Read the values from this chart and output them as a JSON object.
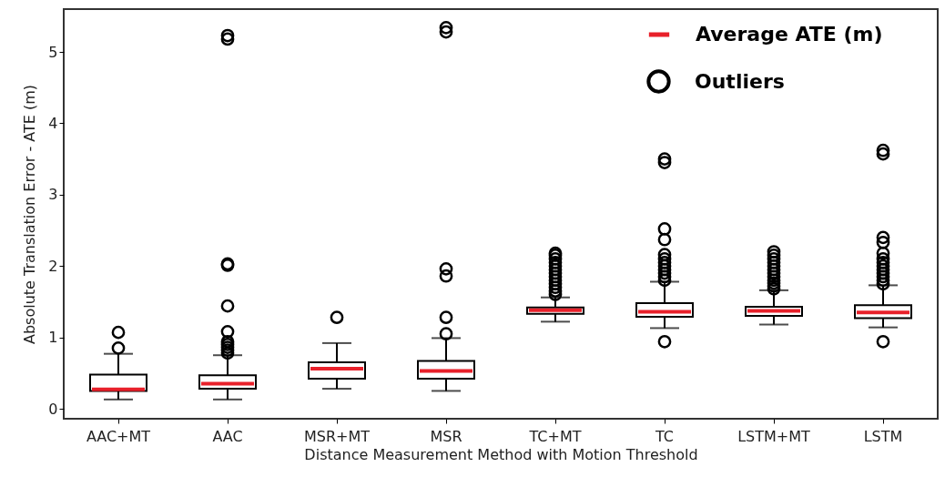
{
  "chart_data": {
    "type": "box",
    "xlabel": "Distance Measurement Method with Motion Threshold",
    "ylabel": "Absolute Translation Error - ATE (m)",
    "categories": [
      "AAC+MT",
      "AAC",
      "MSR+MT",
      "MSR",
      "TC+MT",
      "TC",
      "LSTM+MT",
      "LSTM"
    ],
    "ylim": [
      -0.14,
      5.6
    ],
    "yticks": [
      0,
      1,
      2,
      3,
      4,
      5
    ],
    "grid": false,
    "legend": "top right",
    "marker": "circle",
    "series": [
      {
        "name": "Average ATE (m)",
        "color": "#e8202a",
        "boxes": [
          {
            "low": 0.13,
            "q1": 0.25,
            "median": 0.27,
            "q3": 0.48,
            "high": 0.77
          },
          {
            "low": 0.13,
            "q1": 0.28,
            "median": 0.35,
            "q3": 0.47,
            "high": 0.75
          },
          {
            "low": 0.28,
            "q1": 0.42,
            "median": 0.56,
            "q3": 0.65,
            "high": 0.92
          },
          {
            "low": 0.25,
            "q1": 0.42,
            "median": 0.53,
            "q3": 0.67,
            "high": 0.99
          },
          {
            "low": 1.22,
            "q1": 1.33,
            "median": 1.38,
            "q3": 1.42,
            "high": 1.56
          },
          {
            "low": 1.13,
            "q1": 1.29,
            "median": 1.36,
            "q3": 1.48,
            "high": 1.78
          },
          {
            "low": 1.18,
            "q1": 1.3,
            "median": 1.37,
            "q3": 1.43,
            "high": 1.66
          },
          {
            "low": 1.14,
            "q1": 1.27,
            "median": 1.35,
            "q3": 1.45,
            "high": 1.73
          }
        ]
      },
      {
        "type": "scatter",
        "name": "Outliers",
        "color": "#000000",
        "x": [
          "AAC+MT",
          "AAC+MT",
          "AAC",
          "AAC",
          "AAC",
          "AAC",
          "AAC",
          "AAC",
          "AAC",
          "AAC",
          "AAC",
          "AAC",
          "AAC",
          "MSR+MT",
          "MSR",
          "MSR",
          "MSR",
          "MSR",
          "MSR",
          "MSR",
          "TC+MT",
          "TC+MT",
          "TC+MT",
          "TC+MT",
          "TC+MT",
          "TC+MT",
          "TC+MT",
          "TC+MT",
          "TC+MT",
          "TC+MT",
          "TC+MT",
          "TC+MT",
          "TC+MT",
          "TC",
          "TC",
          "TC",
          "TC",
          "TC",
          "TC",
          "TC",
          "TC",
          "TC",
          "TC",
          "TC",
          "TC",
          "TC",
          "LSTM+MT",
          "LSTM+MT",
          "LSTM+MT",
          "LSTM+MT",
          "LSTM+MT",
          "LSTM+MT",
          "LSTM+MT",
          "LSTM+MT",
          "LSTM+MT",
          "LSTM+MT",
          "LSTM+MT",
          "LSTM+MT",
          "LSTM",
          "LSTM",
          "LSTM",
          "LSTM",
          "LSTM",
          "LSTM",
          "LSTM",
          "LSTM",
          "LSTM",
          "LSTM",
          "LSTM",
          "LSTM",
          "LSTM",
          "LSTM"
        ],
        "values": [
          0.85,
          1.07,
          0.78,
          0.82,
          0.86,
          0.9,
          0.94,
          1.08,
          1.44,
          2.01,
          2.03,
          5.18,
          5.23,
          1.28,
          1.05,
          1.28,
          1.86,
          1.96,
          5.28,
          5.34,
          1.6,
          1.65,
          1.7,
          1.75,
          1.8,
          1.85,
          1.9,
          1.95,
          2.0,
          2.05,
          2.1,
          2.15,
          2.18,
          0.94,
          1.8,
          1.85,
          1.9,
          1.95,
          2.0,
          2.05,
          2.1,
          2.16,
          2.37,
          2.52,
          3.45,
          3.5,
          1.68,
          1.72,
          1.76,
          1.8,
          1.85,
          1.9,
          1.95,
          2.0,
          2.05,
          2.1,
          2.15,
          2.2,
          0.94,
          1.75,
          1.8,
          1.85,
          1.9,
          1.95,
          2.0,
          2.05,
          2.1,
          2.18,
          2.33,
          2.4,
          3.57,
          3.62
        ]
      }
    ]
  }
}
